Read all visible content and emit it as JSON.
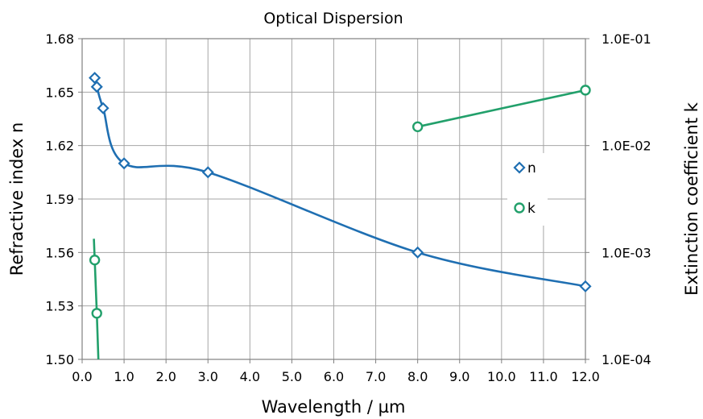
{
  "chart_data": {
    "type": "line",
    "title": "Optical Dispersion",
    "xlabel": "Wavelength / µm",
    "ylabel": "Refractive index n",
    "y2label": "Extinction coefficient k",
    "xlim": [
      0.0,
      12.0
    ],
    "ylim": [
      1.5,
      1.68
    ],
    "y2lim": [
      0.0001,
      0.1
    ],
    "y2_scale": "log",
    "grid": true,
    "legend_position": "right",
    "x_ticks": [
      0.0,
      1.0,
      2.0,
      3.0,
      4.0,
      5.0,
      6.0,
      7.0,
      8.0,
      9.0,
      10.0,
      11.0,
      12.0
    ],
    "x_tick_labels": [
      "0.0",
      "1.0",
      "2.0",
      "3.0",
      "4.0",
      "5.0",
      "6.0",
      "7.0",
      "8.0",
      "9.0",
      "10.0",
      "11.0",
      "12.0"
    ],
    "y_ticks": [
      1.5,
      1.53,
      1.56,
      1.59,
      1.62,
      1.65,
      1.68
    ],
    "y_tick_labels": [
      "1.50",
      "1.53",
      "1.56",
      "1.59",
      "1.62",
      "1.65",
      "1.68"
    ],
    "y2_ticks": [
      0.0001,
      0.001,
      0.01,
      0.1
    ],
    "y2_tick_labels": [
      "1.0E-04",
      "1.0E-03",
      "1.0E-02",
      "1.0E-01"
    ],
    "series": [
      {
        "name": "n",
        "axis": "left",
        "color": "#1f6fb2",
        "marker": "diamond",
        "points": [
          {
            "x": 0.3,
            "y": 1.658
          },
          {
            "x": 0.35,
            "y": 1.653
          },
          {
            "x": 0.5,
            "y": 1.641
          },
          {
            "x": 1.0,
            "y": 1.61
          },
          {
            "x": 3.0,
            "y": 1.605
          },
          {
            "x": 8.0,
            "y": 1.56
          },
          {
            "x": 12.0,
            "y": 1.541
          }
        ]
      },
      {
        "name": "k",
        "axis": "right",
        "color": "#22a06b",
        "marker": "circle",
        "segments": [
          [
            {
              "x": 0.3,
              "y": 0.00085,
              "marker": true
            },
            {
              "x": 0.35,
              "y": 0.00027,
              "marker": true
            }
          ],
          [
            {
              "x": 8.0,
              "y": 0.015,
              "marker": true
            },
            {
              "x": 12.0,
              "y": 0.033,
              "marker": true
            }
          ]
        ]
      }
    ]
  }
}
